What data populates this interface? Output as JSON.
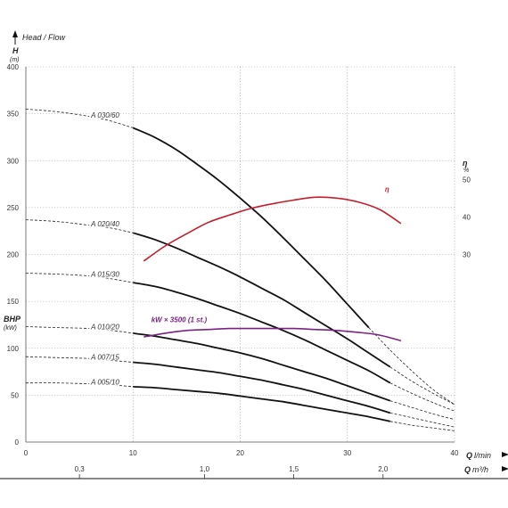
{
  "title": "Head / Flow",
  "chart_data": {
    "type": "line",
    "title": "Head / Flow",
    "xlabel": "Q l/min",
    "xlabel_symbol": "Q",
    "xlabel_unit": "l/min",
    "xlabel2": "Q m³/h",
    "xlabel2_symbol": "Q",
    "xlabel2_unit": "m³/h",
    "ylabel_symbol": "H",
    "ylabel_unit": "(m)",
    "ylabel2_symbol": "BHP",
    "ylabel2_unit": "(kW)",
    "ylabel3_symbol": "η",
    "ylabel3_unit": "%",
    "xlim": [
      0,
      40
    ],
    "ylim": [
      0,
      400
    ],
    "x_ticks": [
      "0",
      "10",
      "20",
      "30",
      "40"
    ],
    "y_ticks": [
      "0",
      "50",
      "100",
      "150",
      "200",
      "250",
      "300",
      "350",
      "400"
    ],
    "x2_ticks": [
      {
        "label": "0,3",
        "q": 5
      },
      {
        "label": "1,0",
        "q": 16.67
      },
      {
        "label": "1,5",
        "q": 25
      },
      {
        "label": "2,0",
        "q": 33.33
      }
    ],
    "eta_ticks": [
      {
        "label": "50",
        "h": 280
      },
      {
        "label": "40",
        "h": 240
      },
      {
        "label": "30",
        "h": 200
      }
    ],
    "grid": true,
    "series": [
      {
        "name": "A 030/60",
        "points": [
          [
            10,
            335
          ],
          [
            12,
            325
          ],
          [
            14,
            312
          ],
          [
            16,
            296
          ],
          [
            18,
            279
          ],
          [
            20,
            260
          ],
          [
            22,
            240
          ],
          [
            24,
            218
          ],
          [
            26,
            195
          ],
          [
            28,
            172
          ],
          [
            30,
            147
          ],
          [
            32,
            122
          ]
        ],
        "extension": [
          [
            0,
            355
          ],
          [
            3,
            352
          ],
          [
            6,
            347
          ],
          [
            8,
            342
          ],
          [
            10,
            335
          ]
        ],
        "tail": [
          [
            32,
            122
          ],
          [
            34,
            98
          ],
          [
            36,
            76
          ],
          [
            38,
            56
          ],
          [
            40,
            40
          ]
        ]
      },
      {
        "name": "A 020/40",
        "points": [
          [
            10,
            223
          ],
          [
            12,
            216
          ],
          [
            14,
            207
          ],
          [
            16,
            197
          ],
          [
            18,
            187
          ],
          [
            20,
            176
          ],
          [
            22,
            164
          ],
          [
            24,
            152
          ],
          [
            26,
            138
          ],
          [
            28,
            124
          ],
          [
            30,
            110
          ],
          [
            32,
            95
          ],
          [
            34,
            80
          ]
        ],
        "extension": [
          [
            0,
            237
          ],
          [
            3,
            235
          ],
          [
            6,
            231
          ],
          [
            8,
            228
          ],
          [
            10,
            223
          ]
        ],
        "tail": [
          [
            34,
            80
          ],
          [
            36,
            65
          ],
          [
            38,
            52
          ],
          [
            40,
            40
          ]
        ]
      },
      {
        "name": "A 015/30",
        "points": [
          [
            10,
            170
          ],
          [
            12,
            166
          ],
          [
            14,
            160
          ],
          [
            16,
            153
          ],
          [
            18,
            145
          ],
          [
            20,
            137
          ],
          [
            22,
            128
          ],
          [
            24,
            119
          ],
          [
            26,
            109
          ],
          [
            28,
            98
          ],
          [
            30,
            87
          ],
          [
            32,
            76
          ],
          [
            34,
            63
          ]
        ],
        "extension": [
          [
            0,
            180
          ],
          [
            3,
            179
          ],
          [
            6,
            177
          ],
          [
            8,
            174
          ],
          [
            10,
            170
          ]
        ],
        "tail": [
          [
            34,
            63
          ],
          [
            36,
            52
          ],
          [
            38,
            42
          ],
          [
            40,
            33
          ]
        ]
      },
      {
        "name": "A 010/20",
        "points": [
          [
            10,
            116
          ],
          [
            12,
            113
          ],
          [
            14,
            109
          ],
          [
            16,
            105
          ],
          [
            18,
            100
          ],
          [
            20,
            95
          ],
          [
            22,
            89
          ],
          [
            24,
            82
          ],
          [
            26,
            75
          ],
          [
            28,
            68
          ],
          [
            30,
            60
          ],
          [
            32,
            52
          ],
          [
            34,
            44
          ]
        ],
        "extension": [
          [
            0,
            123
          ],
          [
            3,
            122
          ],
          [
            6,
            121
          ],
          [
            8,
            119
          ],
          [
            10,
            116
          ]
        ],
        "tail": [
          [
            34,
            44
          ],
          [
            36,
            37
          ],
          [
            38,
            30
          ],
          [
            40,
            24
          ]
        ]
      },
      {
        "name": "A 007/15",
        "points": [
          [
            10,
            85
          ],
          [
            12,
            83
          ],
          [
            14,
            80
          ],
          [
            16,
            77
          ],
          [
            18,
            74
          ],
          [
            20,
            70
          ],
          [
            22,
            66
          ],
          [
            24,
            61
          ],
          [
            26,
            56
          ],
          [
            28,
            50
          ],
          [
            30,
            44
          ],
          [
            32,
            38
          ],
          [
            34,
            31
          ]
        ],
        "extension": [
          [
            0,
            91
          ],
          [
            3,
            90
          ],
          [
            6,
            89
          ],
          [
            8,
            87
          ],
          [
            10,
            85
          ]
        ],
        "tail": [
          [
            34,
            31
          ],
          [
            36,
            26
          ],
          [
            38,
            21
          ],
          [
            40,
            16
          ]
        ]
      },
      {
        "name": "A 005/10",
        "points": [
          [
            10,
            59
          ],
          [
            12,
            58
          ],
          [
            14,
            56
          ],
          [
            16,
            54
          ],
          [
            18,
            52
          ],
          [
            20,
            49
          ],
          [
            22,
            46
          ],
          [
            24,
            43
          ],
          [
            26,
            39
          ],
          [
            28,
            35
          ],
          [
            30,
            31
          ],
          [
            32,
            27
          ],
          [
            34,
            22
          ]
        ],
        "extension": [
          [
            0,
            63
          ],
          [
            3,
            63
          ],
          [
            6,
            62
          ],
          [
            8,
            61
          ],
          [
            10,
            59
          ]
        ],
        "tail": [
          [
            34,
            22
          ],
          [
            36,
            18
          ],
          [
            38,
            15
          ],
          [
            40,
            12
          ]
        ]
      }
    ],
    "efficiency": {
      "label": "η",
      "points": [
        [
          11,
          193
        ],
        [
          13,
          209
        ],
        [
          15,
          222
        ],
        [
          17,
          234
        ],
        [
          19,
          242
        ],
        [
          21,
          249
        ],
        [
          23,
          254
        ],
        [
          25,
          258
        ],
        [
          27,
          261
        ],
        [
          29,
          260
        ],
        [
          31,
          256
        ],
        [
          33,
          248
        ],
        [
          35,
          233
        ]
      ]
    },
    "power": {
      "label": "kW × 3500 (1 st.)",
      "points": [
        [
          11,
          112
        ],
        [
          13,
          116
        ],
        [
          15,
          119
        ],
        [
          17,
          120
        ],
        [
          19,
          121
        ],
        [
          21,
          121
        ],
        [
          23,
          121
        ],
        [
          25,
          121
        ],
        [
          27,
          120
        ],
        [
          29,
          119
        ],
        [
          31,
          117
        ],
        [
          33,
          114
        ],
        [
          35,
          108
        ]
      ]
    },
    "colors": {
      "head": "#111111",
      "efficiency": "#c41e2e",
      "power": "#7a2383",
      "grid": "#9a9a9a"
    }
  }
}
